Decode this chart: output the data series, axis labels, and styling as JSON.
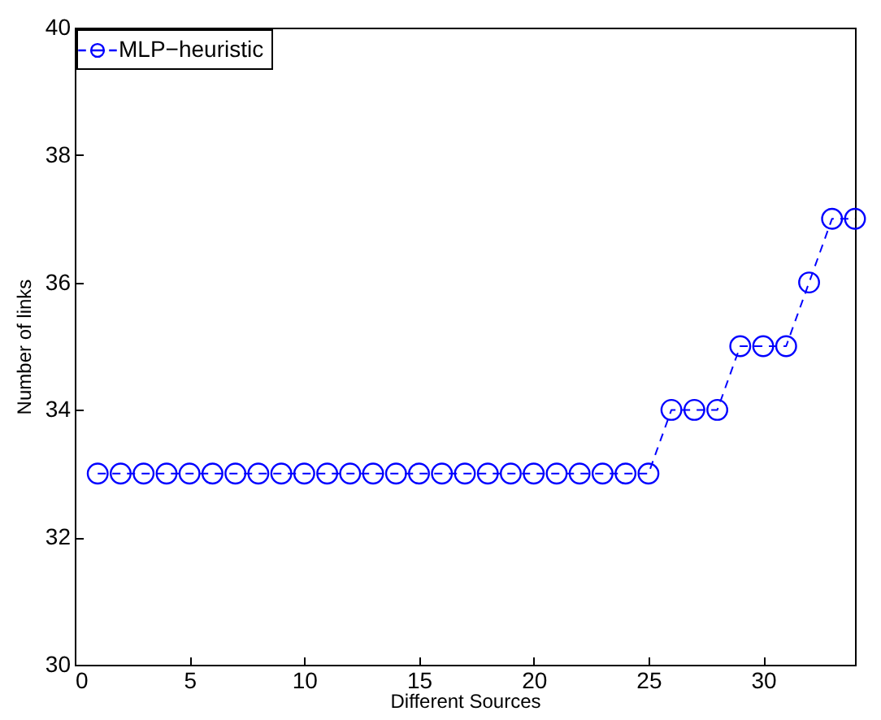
{
  "chart_data": {
    "type": "line",
    "xlabel": "Different Sources",
    "ylabel": "Number of links",
    "x": [
      1,
      2,
      3,
      4,
      5,
      6,
      7,
      8,
      9,
      10,
      11,
      12,
      13,
      14,
      15,
      16,
      17,
      18,
      19,
      20,
      21,
      22,
      23,
      24,
      25,
      26,
      27,
      28,
      29,
      30,
      31,
      32,
      33,
      34
    ],
    "series": [
      {
        "name": "MLP−heuristic",
        "color": "#0000ff",
        "values": [
          33,
          33,
          33,
          33,
          33,
          33,
          33,
          33,
          33,
          33,
          33,
          33,
          33,
          33,
          33,
          33,
          33,
          33,
          33,
          33,
          33,
          33,
          33,
          33,
          33,
          34,
          34,
          34,
          35,
          35,
          35,
          36,
          37,
          37
        ]
      }
    ],
    "xlim": [
      0,
      34
    ],
    "xticks": [
      0,
      5,
      10,
      15,
      20,
      25,
      30
    ],
    "ylim": [
      30,
      40
    ],
    "yticks": [
      30,
      32,
      34,
      36,
      38,
      40
    ],
    "grid": false,
    "legend": "top left",
    "marker": "circle",
    "line_style": "dashed"
  }
}
